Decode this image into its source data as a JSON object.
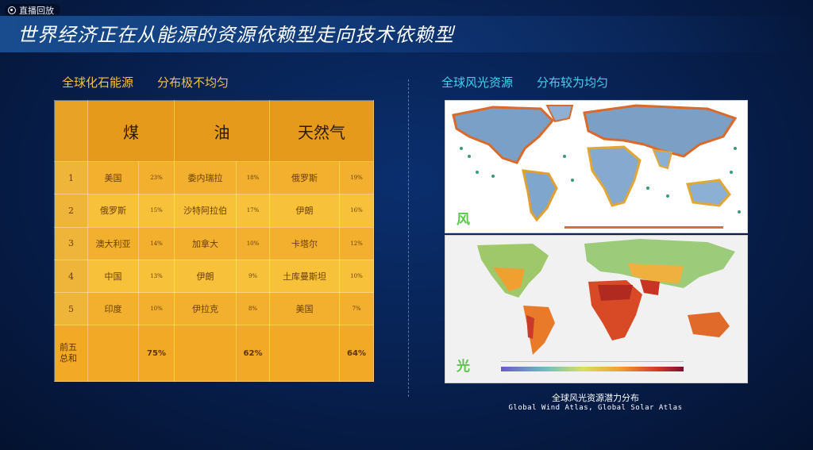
{
  "badge": {
    "label": "直播回放"
  },
  "title": "世界经济正在从能源的资源依赖型走向技术依赖型",
  "left_heading": {
    "part1": "全球化石能源",
    "part2": "分布极不均匀"
  },
  "right_heading": {
    "part1": "全球风光资源",
    "part2": "分布较为均匀"
  },
  "table": {
    "headers": [
      "煤",
      "油",
      "天然气"
    ],
    "rows": [
      {
        "rank": "1",
        "coal": "美国",
        "coal_pct": "23%",
        "oil": "委内瑞拉",
        "oil_pct": "18%",
        "gas": "俄罗斯",
        "gas_pct": "19%"
      },
      {
        "rank": "2",
        "coal": "俄罗斯",
        "coal_pct": "15%",
        "oil": "沙特阿拉伯",
        "oil_pct": "17%",
        "gas": "伊朗",
        "gas_pct": "16%"
      },
      {
        "rank": "3",
        "coal": "澳大利亚",
        "coal_pct": "14%",
        "oil": "加拿大",
        "oil_pct": "10%",
        "gas": "卡塔尔",
        "gas_pct": "12%"
      },
      {
        "rank": "4",
        "coal": "中国",
        "coal_pct": "13%",
        "oil": "伊朗",
        "oil_pct": "9%",
        "gas": "土库曼斯坦",
        "gas_pct": "10%"
      },
      {
        "rank": "5",
        "coal": "印度",
        "coal_pct": "10%",
        "oil": "伊拉克",
        "oil_pct": "8%",
        "gas": "美国",
        "gas_pct": "7%"
      }
    ],
    "sum": {
      "label_line1": "前五",
      "label_line2": "总和",
      "coal": "75%",
      "oil": "62%",
      "gas": "64%"
    }
  },
  "maps": {
    "wind_label": "风",
    "solar_label": "光"
  },
  "caption": {
    "cn": "全球风光资源潜力分布",
    "en": "Global Wind Atlas, Global Solar Atlas"
  }
}
